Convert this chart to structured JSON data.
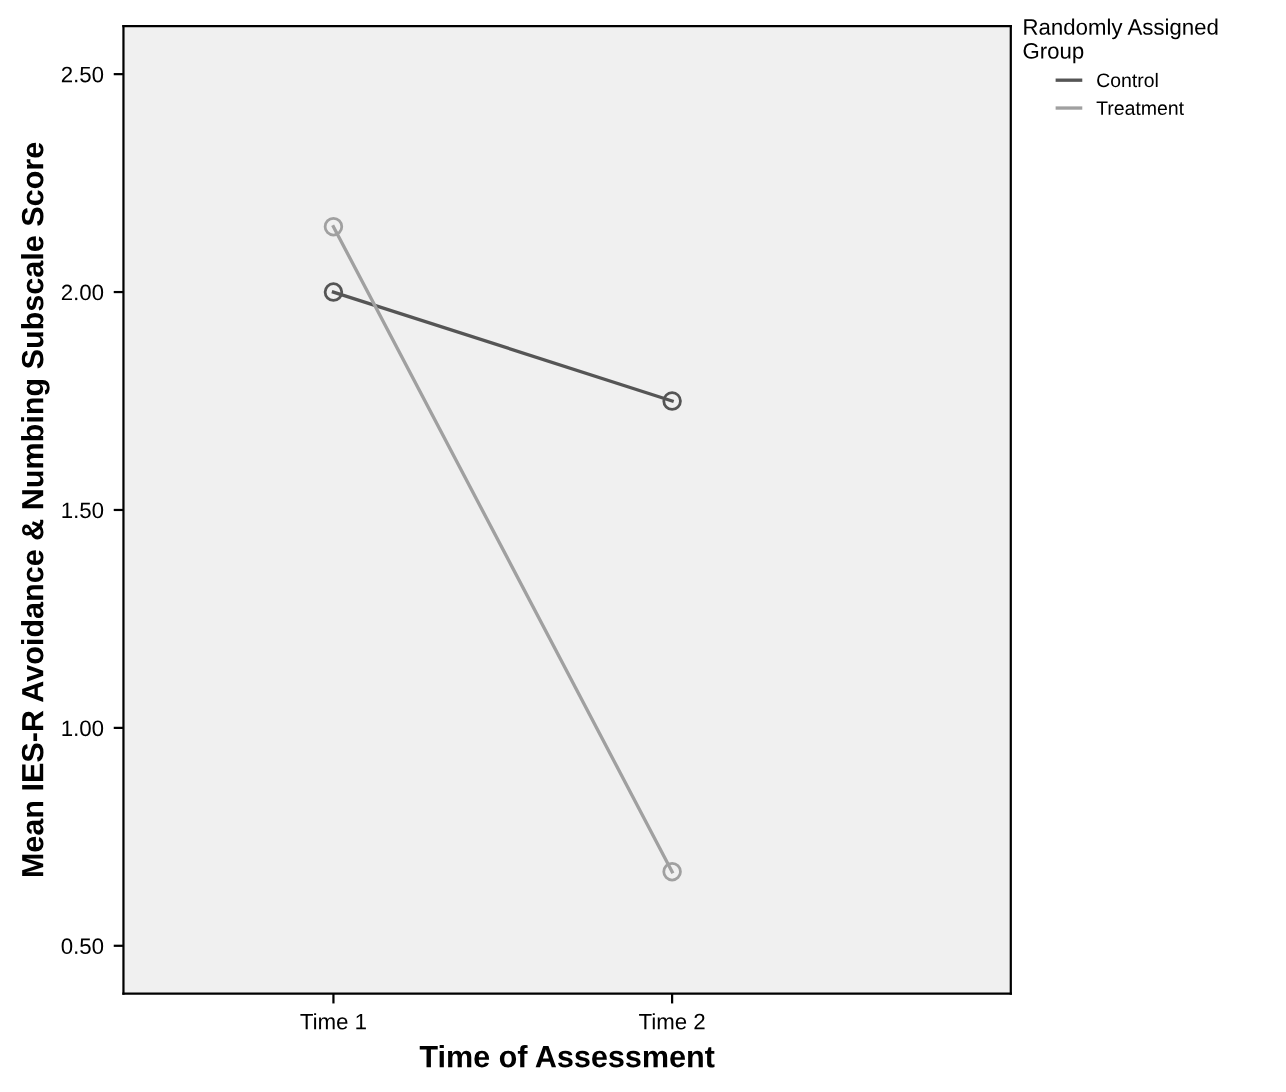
{
  "chart_data": {
    "type": "line",
    "xlabel": "Time of Assessment",
    "ylabel": "Mean IES-R Avoidance & Numbing Subscale Score",
    "legend_title": "Randomly Assigned\nGroup",
    "categories": [
      "Time 1",
      "Time 2"
    ],
    "series": [
      {
        "name": "Control",
        "color": "#555555",
        "values": [
          2.0,
          1.75
        ]
      },
      {
        "name": "Treatment",
        "color": "#a0a0a0",
        "values": [
          2.15,
          0.67
        ]
      }
    ],
    "ylim": [
      0.39,
      2.61
    ],
    "yticks": [
      {
        "value": 0.5,
        "label": "0.50"
      },
      {
        "value": 1.0,
        "label": "1.00"
      },
      {
        "value": 1.5,
        "label": "1.50"
      },
      {
        "value": 2.0,
        "label": "2.00"
      },
      {
        "value": 2.5,
        "label": "2.50"
      }
    ],
    "marker": "circle",
    "line_style": "solid",
    "grid": false,
    "legend": "top right"
  }
}
